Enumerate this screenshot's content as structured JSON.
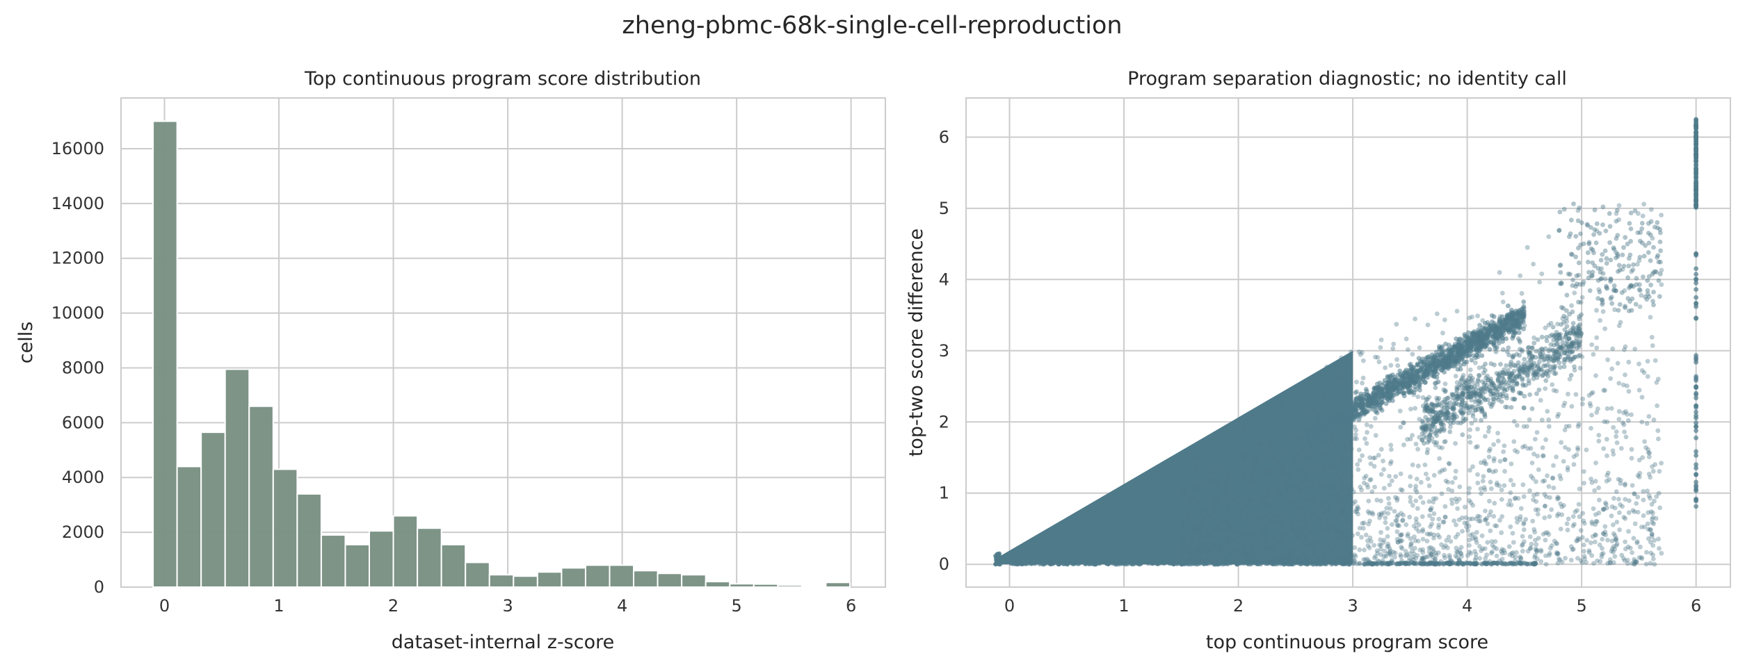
{
  "figure": {
    "suptitle": "zheng-pbmc-68k-single-cell-reproduction"
  },
  "chart_data": [
    {
      "type": "bar",
      "subtype": "histogram",
      "title": "Top continuous program score distribution",
      "xlabel": "dataset-internal z-score",
      "ylabel": "cells",
      "xlim": [
        -0.38,
        6.3
      ],
      "ylim": [
        0,
        17850
      ],
      "xticks": [
        0,
        1,
        2,
        3,
        4,
        5,
        6
      ],
      "yticks": [
        0,
        2000,
        4000,
        6000,
        8000,
        10000,
        12000,
        14000,
        16000
      ],
      "grid": true,
      "color": "#7a9285",
      "bin_edges": [
        -0.1,
        0.11,
        0.32,
        0.53,
        0.74,
        0.95,
        1.16,
        1.37,
        1.58,
        1.79,
        2.0,
        2.21,
        2.42,
        2.63,
        2.84,
        3.05,
        3.26,
        3.47,
        3.68,
        3.89,
        4.1,
        4.31,
        4.52,
        4.73,
        4.94,
        5.15,
        5.36,
        5.57,
        5.78,
        5.99
      ],
      "values": [
        17000,
        4400,
        5650,
        7950,
        6600,
        4300,
        3400,
        1900,
        1550,
        2050,
        2600,
        2150,
        1550,
        900,
        450,
        400,
        550,
        700,
        800,
        800,
        600,
        500,
        450,
        200,
        120,
        110,
        70,
        40,
        170
      ]
    },
    {
      "type": "scatter",
      "title": "Program separation diagnostic; no identity call",
      "xlabel": "top continuous program score",
      "ylabel": "top-two score difference",
      "xlim": [
        -0.38,
        6.3
      ],
      "ylim": [
        -0.32,
        6.55
      ],
      "xticks": [
        0,
        1,
        2,
        3,
        4,
        5,
        6
      ],
      "yticks": [
        0,
        1,
        2,
        3,
        4,
        5,
        6
      ],
      "grid": true,
      "color": "#4f7a8a",
      "point_count_shown": "approximate sample of ~68k cells",
      "structures": [
        {
          "description": "dense wedge",
          "upper_edge": "y = x",
          "x_range": [
            -0.1,
            3.0
          ]
        },
        {
          "description": "dense diagonal band",
          "x_range": [
            2.9,
            4.5
          ],
          "y_range": [
            2.3,
            3.6
          ]
        },
        {
          "description": "diffuse cloud",
          "x_range": [
            1.5,
            5.7
          ],
          "y_range": [
            0,
            5.2
          ]
        },
        {
          "description": "vertical stack at clip",
          "x": 6.0,
          "y_range": [
            0.8,
            6.25
          ]
        },
        {
          "description": "cluster near origin",
          "x": -0.1,
          "y_range": [
            0,
            0.15
          ]
        }
      ]
    }
  ]
}
